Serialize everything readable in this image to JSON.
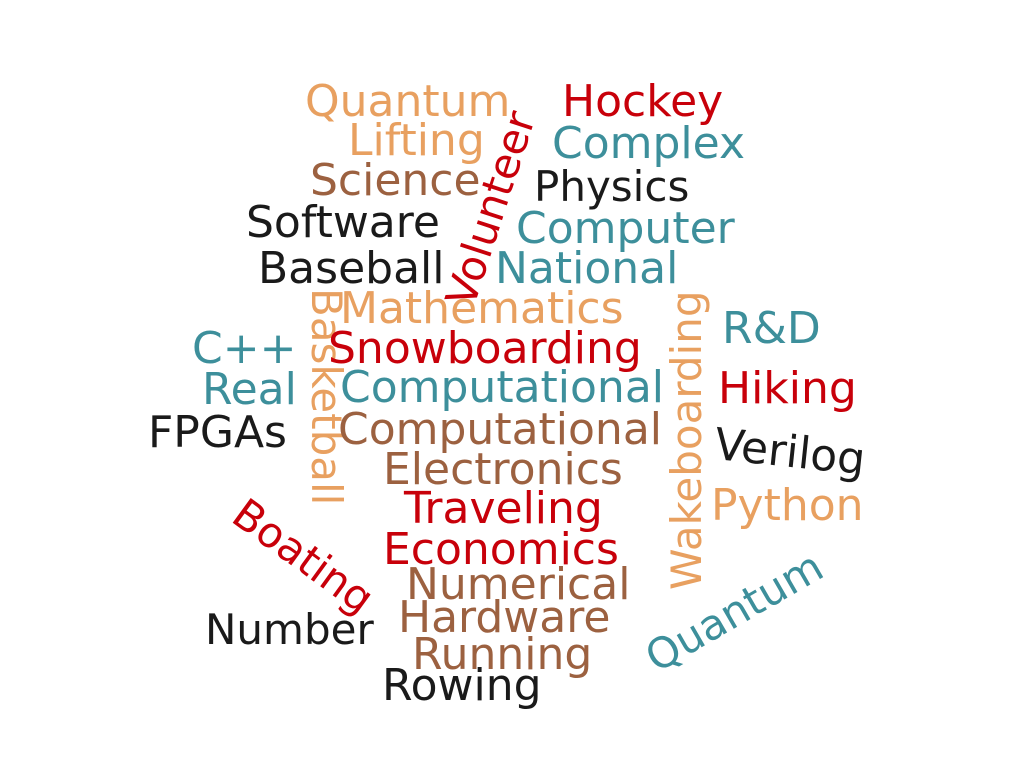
{
  "colors": {
    "black": "#1a1a1a",
    "red": "#c8000a",
    "teal": "#3d8f9b",
    "peach": "#e8a060",
    "brown": "#9c6140"
  },
  "words": {
    "quantum_1": "Quantum",
    "hockey": "Hockey",
    "volunteer": "Volunteer",
    "lifting": "Lifting",
    "complex": "Complex",
    "science": "Science",
    "physics": "Physics",
    "software": "Software",
    "computer": "Computer",
    "baseball": "Baseball",
    "national": "National",
    "wakeboarding": "Wakeboarding",
    "basketball": "Basketball",
    "mathematics": "Mathematics",
    "rnd": "R&D",
    "cpp": "C++",
    "snowboarding": "Snowboarding",
    "real": "Real",
    "computational_1": "Computational",
    "hiking": "Hiking",
    "fpgas": "FPGAs",
    "computational_2": "Computational",
    "verilog": "Verilog",
    "electronics": "Electronics",
    "python": "Python",
    "traveling": "Traveling",
    "boating": "Boating",
    "economics": "Economics",
    "quantum_2": "Quantum",
    "numerical": "Numerical",
    "hardware": "Hardware",
    "number": "Number",
    "running": "Running",
    "rowing": "Rowing"
  }
}
